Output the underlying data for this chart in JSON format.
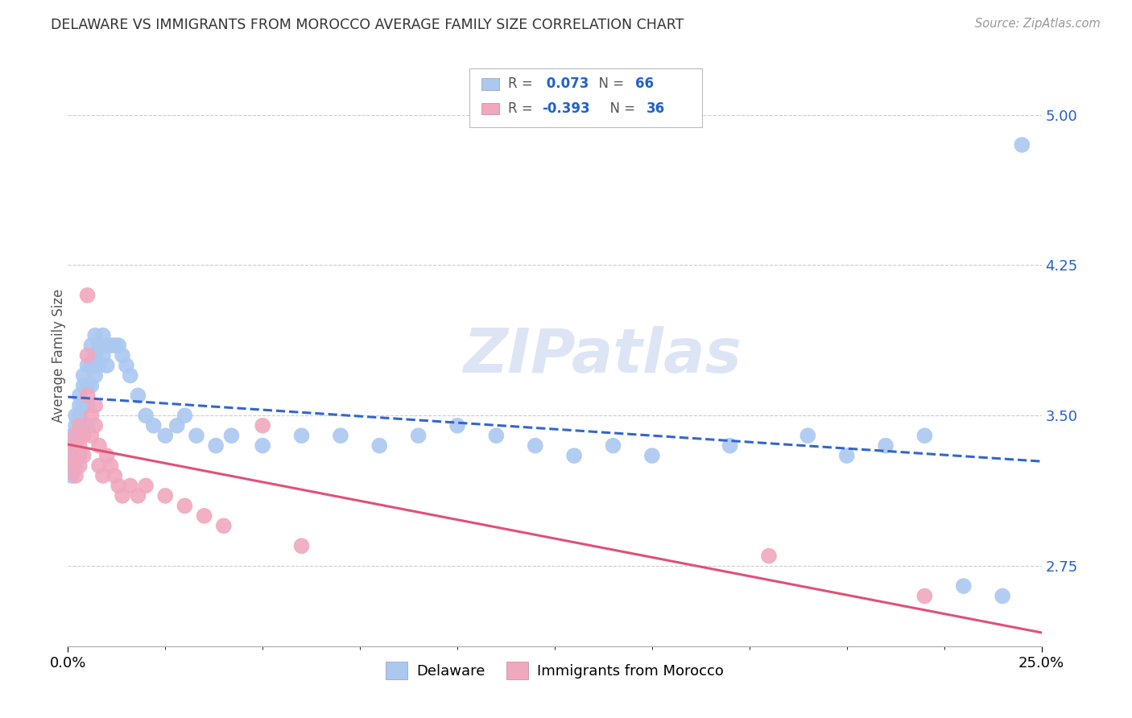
{
  "title": "DELAWARE VS IMMIGRANTS FROM MOROCCO AVERAGE FAMILY SIZE CORRELATION CHART",
  "source": "Source: ZipAtlas.com",
  "ylabel": "Average Family Size",
  "ytick_labels": [
    "2.75",
    "3.50",
    "4.25",
    "5.00"
  ],
  "ytick_values": [
    2.75,
    3.5,
    4.25,
    5.0
  ],
  "xlim": [
    0.0,
    0.25
  ],
  "ylim": [
    2.35,
    5.25
  ],
  "watermark": "ZIPatlas",
  "delaware_R": 0.073,
  "delaware_N": 66,
  "morocco_R": -0.393,
  "morocco_N": 36,
  "delaware_color": "#aac8f0",
  "morocco_color": "#f0a8be",
  "delaware_line_color": "#3366cc",
  "morocco_line_color": "#e0507a",
  "background_color": "#ffffff",
  "grid_color": "#cccccc",
  "title_color": "#333333",
  "axis_color": "#2060cc",
  "delaware_x": [
    0.001,
    0.001,
    0.001,
    0.002,
    0.002,
    0.002,
    0.002,
    0.003,
    0.003,
    0.003,
    0.003,
    0.003,
    0.004,
    0.004,
    0.004,
    0.004,
    0.005,
    0.005,
    0.005,
    0.005,
    0.006,
    0.006,
    0.006,
    0.007,
    0.007,
    0.007,
    0.008,
    0.008,
    0.009,
    0.009,
    0.01,
    0.01,
    0.011,
    0.012,
    0.013,
    0.014,
    0.015,
    0.016,
    0.018,
    0.02,
    0.022,
    0.025,
    0.028,
    0.03,
    0.033,
    0.038,
    0.042,
    0.05,
    0.06,
    0.07,
    0.08,
    0.09,
    0.1,
    0.11,
    0.12,
    0.13,
    0.14,
    0.15,
    0.17,
    0.19,
    0.2,
    0.21,
    0.22,
    0.23,
    0.24,
    0.245
  ],
  "delaware_y": [
    3.4,
    3.3,
    3.2,
    3.5,
    3.45,
    3.35,
    3.25,
    3.6,
    3.55,
    3.5,
    3.4,
    3.3,
    3.7,
    3.65,
    3.55,
    3.45,
    3.75,
    3.65,
    3.55,
    3.45,
    3.85,
    3.75,
    3.65,
    3.9,
    3.8,
    3.7,
    3.85,
    3.75,
    3.9,
    3.8,
    3.85,
    3.75,
    3.85,
    3.85,
    3.85,
    3.8,
    3.75,
    3.7,
    3.6,
    3.5,
    3.45,
    3.4,
    3.45,
    3.5,
    3.4,
    3.35,
    3.4,
    3.35,
    3.4,
    3.4,
    3.35,
    3.4,
    3.45,
    3.4,
    3.35,
    3.3,
    3.35,
    3.3,
    3.35,
    3.4,
    3.3,
    3.35,
    3.4,
    2.65,
    2.6,
    4.85
  ],
  "morocco_x": [
    0.001,
    0.001,
    0.002,
    0.002,
    0.002,
    0.003,
    0.003,
    0.003,
    0.004,
    0.004,
    0.005,
    0.005,
    0.005,
    0.006,
    0.006,
    0.007,
    0.007,
    0.008,
    0.008,
    0.009,
    0.01,
    0.011,
    0.012,
    0.013,
    0.014,
    0.016,
    0.018,
    0.02,
    0.025,
    0.03,
    0.035,
    0.04,
    0.05,
    0.06,
    0.18,
    0.22
  ],
  "morocco_y": [
    3.35,
    3.25,
    3.4,
    3.3,
    3.2,
    3.45,
    3.35,
    3.25,
    3.4,
    3.3,
    4.1,
    3.8,
    3.6,
    3.5,
    3.4,
    3.55,
    3.45,
    3.35,
    3.25,
    3.2,
    3.3,
    3.25,
    3.2,
    3.15,
    3.1,
    3.15,
    3.1,
    3.15,
    3.1,
    3.05,
    3.0,
    2.95,
    3.45,
    2.85,
    2.8,
    2.6
  ]
}
